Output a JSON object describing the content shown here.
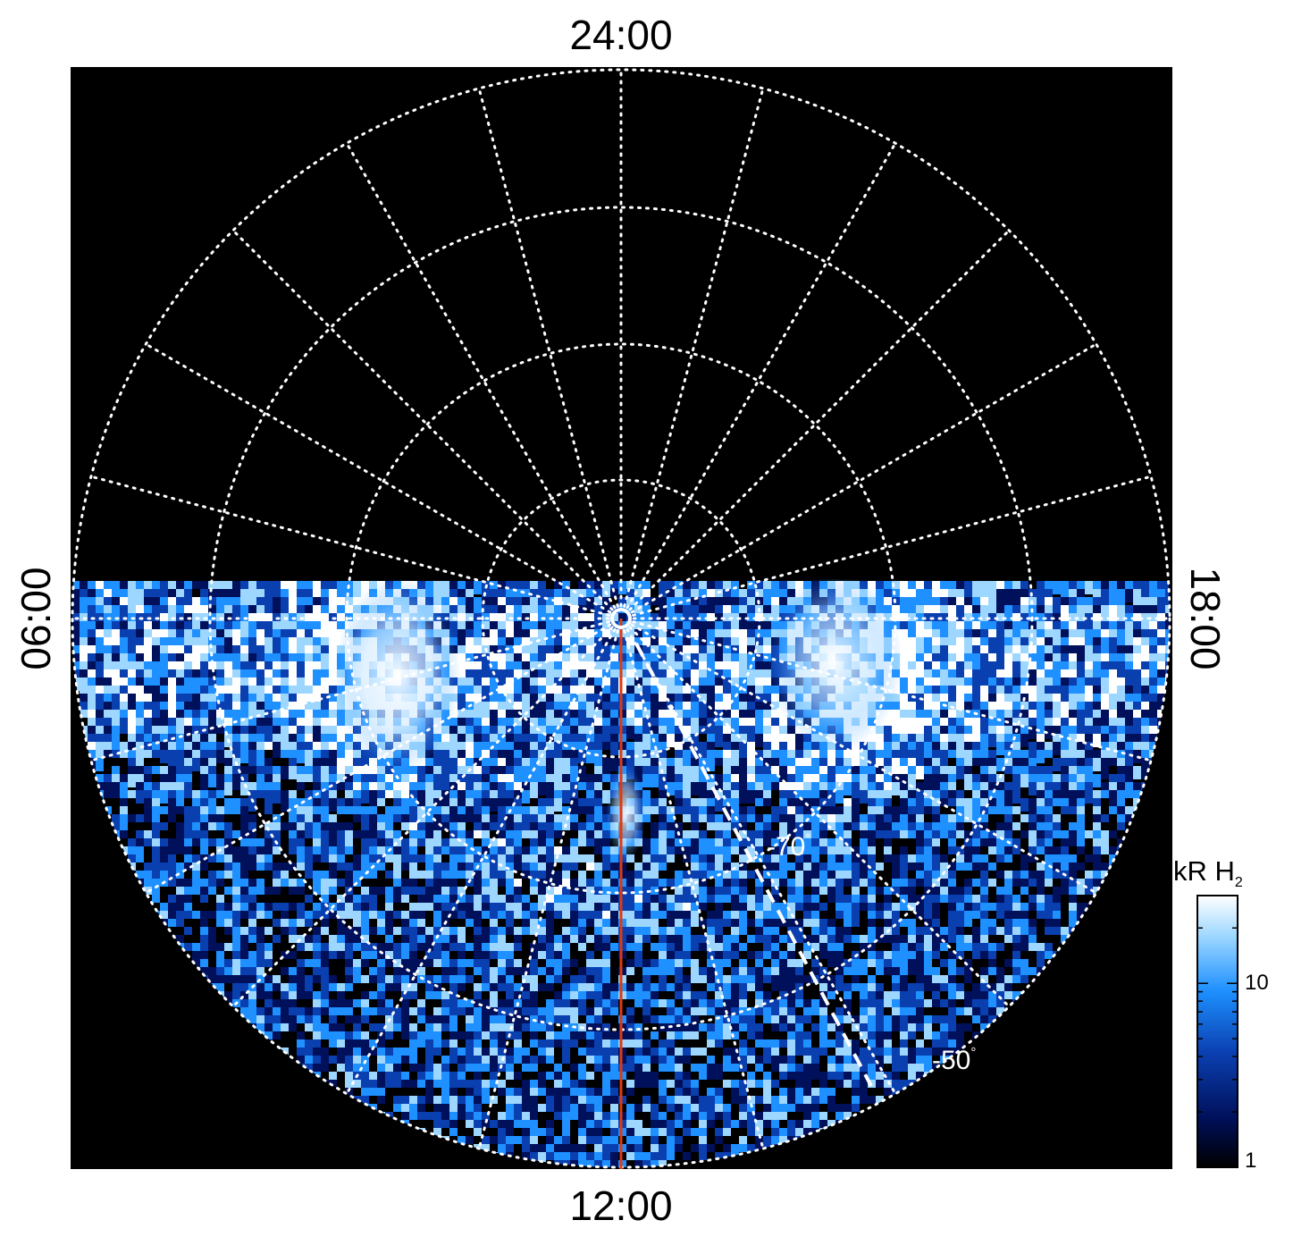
{
  "chart_data": {
    "type": "heatmap",
    "projection": "polar",
    "background": "#000000",
    "local_time_labels": {
      "top": "24:00",
      "bottom": "12:00",
      "left": "06:00",
      "right": "18:00"
    },
    "latitude_labels": [
      {
        "text": "-70",
        "unit": "°"
      },
      {
        "text": "-50",
        "unit": "°"
      }
    ],
    "colorbar": {
      "title": "kR H",
      "title_subscript": "2",
      "scale": "log",
      "range": [
        1,
        30
      ],
      "ticks": [
        "1",
        "10"
      ],
      "colors": [
        "#000000",
        "#00105a",
        "#0a3fb0",
        "#1e90ff",
        "#9dd7ff",
        "#ffffff"
      ]
    },
    "features": {
      "emission_hemisphere": "bottom (dayside)",
      "bright_arcs": "near 06:00 and 18:00 sides close to the pole",
      "dashed_meridian_color": "#ffffff",
      "red_meridian_color": "#e03a10"
    }
  }
}
